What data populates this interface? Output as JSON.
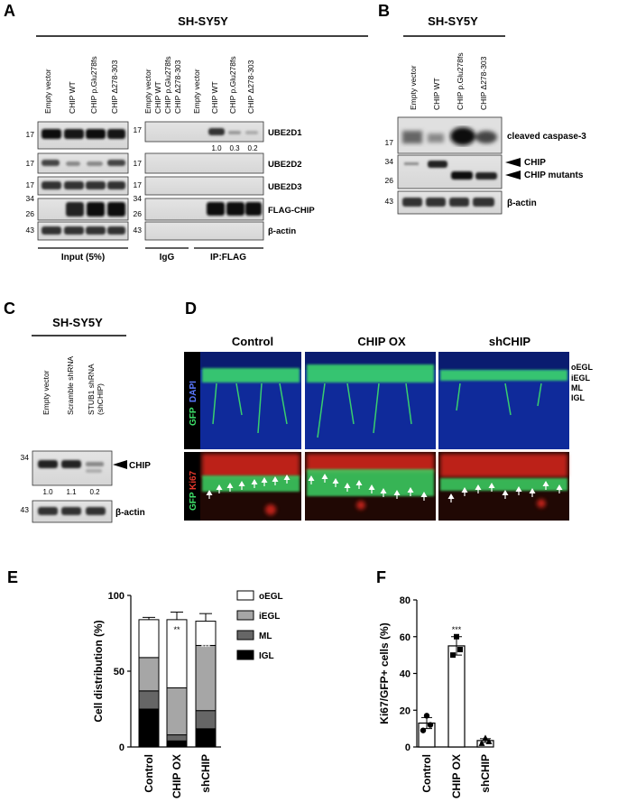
{
  "panels": {
    "A": {
      "letter": "A",
      "cell_line": "SH-SY5Y",
      "lanes": [
        "Empty vector",
        "CHIP WT",
        "CHIP p.Glu278fs",
        "CHIP Δ278-303"
      ],
      "bands": [
        "UBE2D1",
        "UBE2D2",
        "UBE2D3",
        "FLAG-CHIP",
        "β-actin"
      ],
      "input_markers": [
        "17",
        "17",
        "17",
        "34",
        "26",
        "43"
      ],
      "ip_markers": [
        "17",
        "17",
        "17",
        "34",
        "26",
        "43"
      ],
      "ip_quant": [
        "1.0",
        "0.3",
        "0.2"
      ],
      "group_input": "Input (5%)",
      "group_igg": "IgG",
      "group_ip": "IP:FLAG"
    },
    "B": {
      "letter": "B",
      "cell_line": "SH-SY5Y",
      "lanes": [
        "Empty vector",
        "CHIP WT",
        "CHIP p.Glu278fs",
        "CHIP Δ278-303"
      ],
      "markers": [
        "17",
        "34",
        "26",
        "43"
      ],
      "label_caspase": "cleaved caspase-3",
      "label_chip": "CHIP",
      "label_mutants": "CHIP mutants",
      "label_actin": "β-actin"
    },
    "C": {
      "letter": "C",
      "cell_line": "SH-SY5Y",
      "lanes": [
        "Empty vector",
        "Scramble shRNA",
        "STUB1 shRNA",
        "(shCHIP)"
      ],
      "markers": [
        "34",
        "43"
      ],
      "quant": [
        "1.0",
        "1.1",
        "0.2"
      ],
      "label_chip": "CHIP",
      "label_actin": "β-actin"
    },
    "D": {
      "letter": "D",
      "columns": [
        "Control",
        "CHIP OX",
        "shCHIP"
      ],
      "layers": [
        "oEGL",
        "iEGL",
        "ML",
        "IGL"
      ],
      "row1_label_a": "GFP",
      "row1_label_b": "DAPI",
      "row2_label_a": "GFP",
      "row2_label_b": "Ki67"
    }
  },
  "chart_data": [
    {
      "panel": "E",
      "type": "bar",
      "stacked": true,
      "ylabel": "Cell distribution (%)",
      "ylim": [
        0,
        100
      ],
      "yticks": [
        "0",
        "50",
        "100"
      ],
      "categories": [
        "Control",
        "CHIP OX",
        "shCHIP"
      ],
      "series": [
        {
          "name": "IGL",
          "values": [
            25,
            4,
            12
          ],
          "errors": [
            3,
            1,
            2
          ],
          "color": "#000000"
        },
        {
          "name": "ML",
          "values": [
            12,
            4,
            12
          ],
          "errors": [
            1.5,
            1,
            1.5
          ],
          "color": "#666666"
        },
        {
          "name": "iEGL",
          "values": [
            22,
            31,
            43
          ],
          "errors": [
            3,
            4,
            3
          ],
          "color": "#a6a6a6"
        },
        {
          "name": "oEGL",
          "values": [
            25,
            45,
            16
          ],
          "errors": [
            1.5,
            5,
            5
          ],
          "color": "#ffffff"
        }
      ],
      "legend_order": [
        "oEGL",
        "iEGL",
        "ML",
        "IGL"
      ],
      "significance": [
        "",
        "**",
        "***"
      ]
    },
    {
      "panel": "F",
      "type": "bar",
      "ylabel": "Ki67/GFP+ cells (%)",
      "ylim": [
        0,
        80
      ],
      "yticks": [
        "0",
        "20",
        "40",
        "60",
        "80"
      ],
      "categories": [
        "Control",
        "CHIP OX",
        "shCHIP"
      ],
      "values": [
        13,
        55,
        3.5
      ],
      "errors": [
        3,
        5,
        1
      ],
      "points": [
        [
          9,
          12,
          17
        ],
        [
          50,
          53,
          60
        ],
        [
          2,
          3,
          5
        ]
      ],
      "significance": [
        "",
        "***",
        ""
      ]
    }
  ]
}
